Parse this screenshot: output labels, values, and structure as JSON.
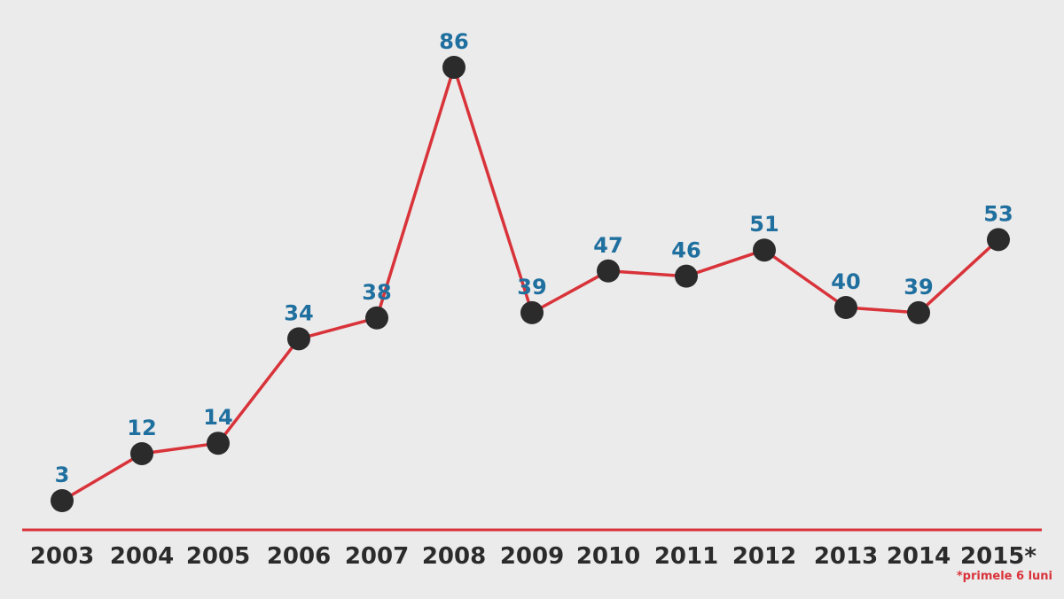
{
  "chart_data": {
    "type": "line",
    "title": "",
    "xlabel": "",
    "ylabel": "",
    "categories": [
      "2003",
      "2004",
      "2005",
      "2006",
      "2007",
      "2008",
      "2009",
      "2010",
      "2011",
      "2012",
      "2013",
      "2014",
      "2015*"
    ],
    "series": [
      {
        "values": [
          3,
          12,
          14,
          34,
          38,
          86,
          39,
          47,
          46,
          51,
          40,
          39,
          53
        ]
      }
    ],
    "ylim": [
      0,
      90
    ],
    "grid": false,
    "legend": "none",
    "footnote": "*primele 6 luni"
  },
  "colors": {
    "background": "#ebebeb",
    "line": "#d9333a",
    "axis": "#d9333a",
    "marker": "#2b2b2b",
    "value_label": "#1f6f9f",
    "tick_label": "#2b2b2b",
    "footnote": "#d9333a"
  }
}
